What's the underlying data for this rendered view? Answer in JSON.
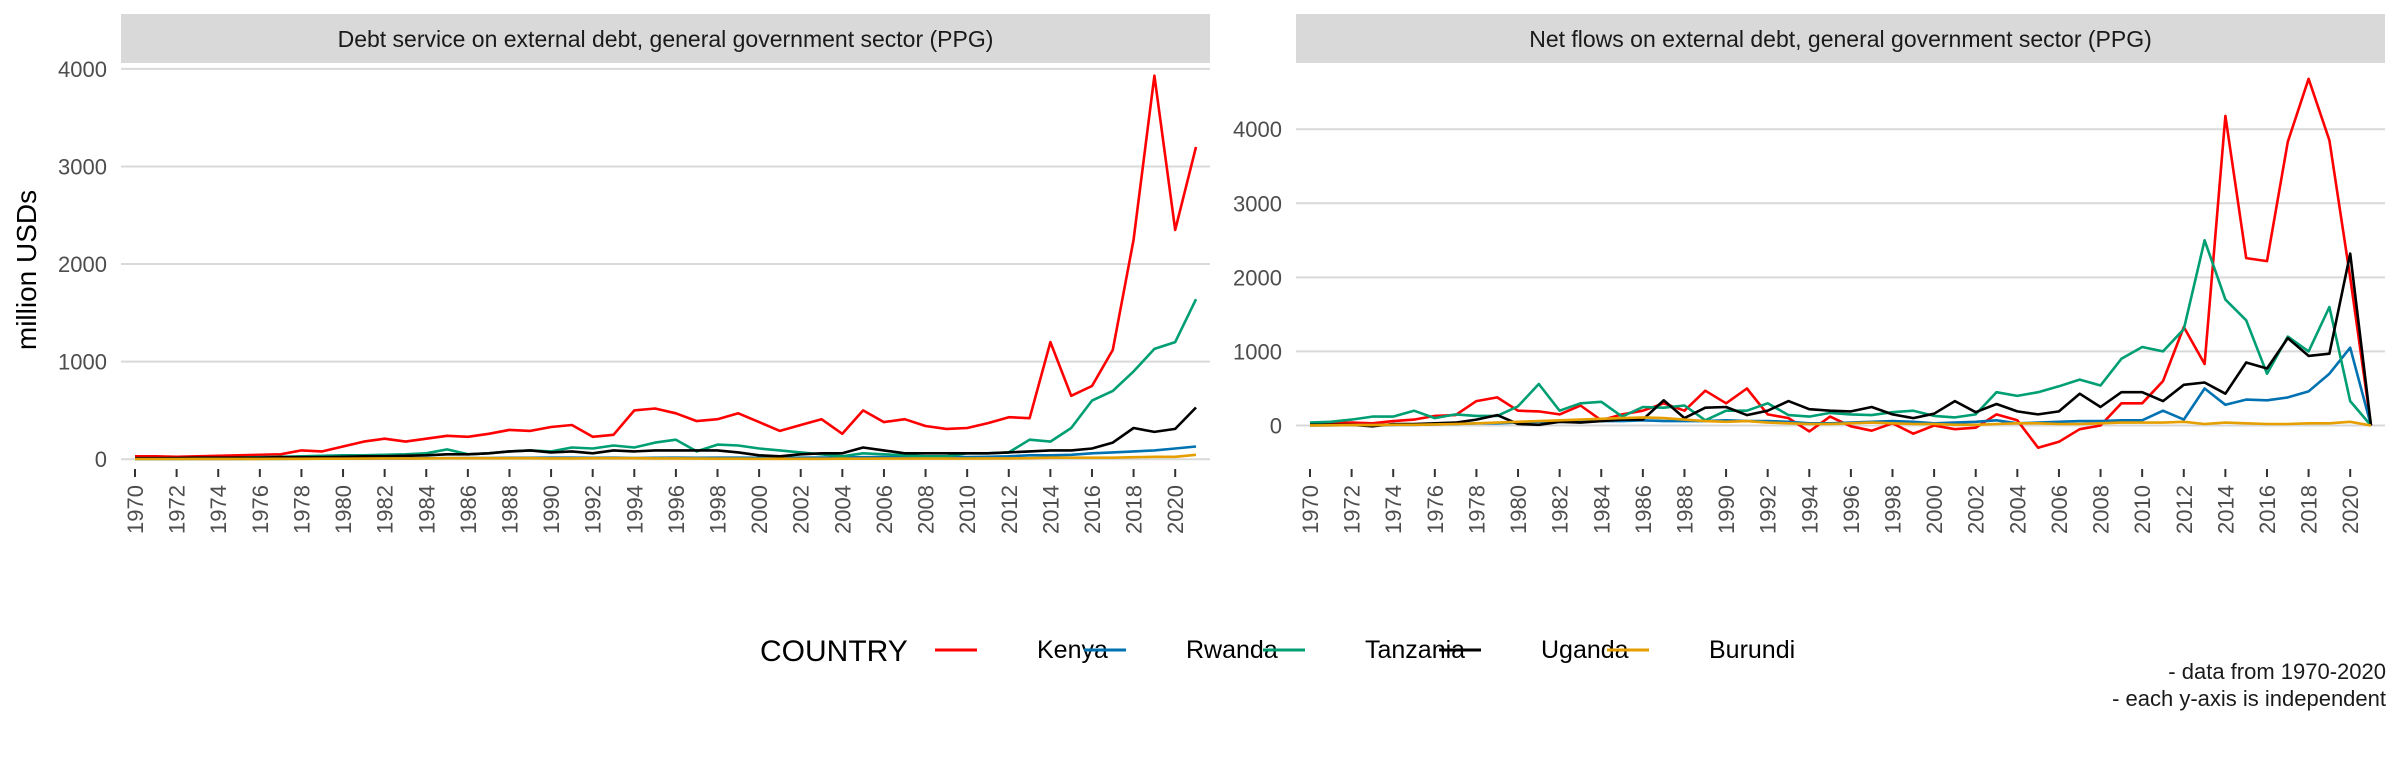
{
  "figure": {
    "ylabel": "million USDs",
    "legend_title": "COUNTRY",
    "legend_position": "bottom",
    "caption_lines": [
      "- data from 1970-2020",
      "- each y-axis is independent"
    ],
    "colors": {
      "Kenya": "#ff0000",
      "Rwanda": "#0072b2",
      "Tanzania": "#009e73",
      "Uganda": "#000000",
      "Burundi": "#e69f00"
    }
  },
  "chart_data": [
    {
      "type": "line",
      "title": "Debt service on external debt, general government sector (PPG)",
      "xlabel": "",
      "ylabel": "million USDs",
      "grid": true,
      "xlim": [
        1970,
        2021
      ],
      "ylim": [
        -80,
        4050
      ],
      "x_ticks": [
        "1970",
        "1972",
        "1974",
        "1976",
        "1978",
        "1980",
        "1982",
        "1984",
        "1986",
        "1988",
        "1990",
        "1992",
        "1994",
        "1996",
        "1998",
        "2000",
        "2002",
        "2004",
        "2006",
        "2008",
        "2010",
        "2012",
        "2014",
        "2016",
        "2018",
        "2020"
      ],
      "y_ticks": [
        "0",
        "1000",
        "2000",
        "3000",
        "4000"
      ],
      "x": [
        1970,
        1971,
        1972,
        1973,
        1974,
        1975,
        1976,
        1977,
        1978,
        1979,
        1980,
        1981,
        1982,
        1983,
        1984,
        1985,
        1986,
        1987,
        1988,
        1989,
        1990,
        1991,
        1992,
        1993,
        1994,
        1995,
        1996,
        1997,
        1998,
        1999,
        2000,
        2001,
        2002,
        2003,
        2004,
        2005,
        2006,
        2007,
        2008,
        2009,
        2010,
        2011,
        2012,
        2013,
        2014,
        2015,
        2016,
        2017,
        2018,
        2019,
        2020,
        2021
      ],
      "series": [
        {
          "name": "Kenya",
          "values": [
            30,
            30,
            25,
            30,
            35,
            40,
            45,
            50,
            90,
            80,
            130,
            180,
            210,
            180,
            210,
            240,
            230,
            260,
            300,
            290,
            330,
            350,
            230,
            250,
            500,
            520,
            470,
            390,
            410,
            470,
            380,
            290,
            350,
            410,
            260,
            500,
            380,
            410,
            340,
            310,
            320,
            370,
            430,
            420,
            1200,
            650,
            750,
            1120,
            2250,
            3930,
            2350,
            3200
          ]
        },
        {
          "name": "Rwanda",
          "values": [
            2,
            2,
            3,
            3,
            3,
            3,
            4,
            4,
            5,
            5,
            6,
            6,
            8,
            8,
            10,
            10,
            12,
            12,
            14,
            14,
            15,
            15,
            14,
            15,
            12,
            14,
            15,
            14,
            15,
            15,
            14,
            13,
            15,
            16,
            18,
            20,
            22,
            22,
            20,
            20,
            22,
            25,
            30,
            40,
            40,
            45,
            60,
            70,
            80,
            90,
            110,
            130
          ]
        },
        {
          "name": "Tanzania",
          "values": [
            5,
            5,
            8,
            10,
            12,
            15,
            20,
            25,
            30,
            35,
            40,
            40,
            45,
            50,
            60,
            100,
            50,
            60,
            80,
            90,
            80,
            120,
            110,
            140,
            120,
            170,
            200,
            80,
            150,
            140,
            110,
            90,
            70,
            50,
            30,
            60,
            50,
            40,
            30,
            30,
            60,
            60,
            70,
            200,
            180,
            320,
            600,
            700,
            900,
            1130,
            1200,
            1640
          ]
        },
        {
          "name": "Uganda",
          "values": [
            10,
            10,
            12,
            15,
            15,
            15,
            15,
            20,
            20,
            20,
            25,
            30,
            30,
            35,
            40,
            50,
            50,
            60,
            80,
            90,
            70,
            80,
            60,
            90,
            80,
            90,
            90,
            90,
            90,
            70,
            40,
            30,
            50,
            60,
            60,
            120,
            90,
            60,
            60,
            60,
            60,
            60,
            70,
            80,
            90,
            90,
            110,
            170,
            320,
            280,
            310,
            530
          ]
        },
        {
          "name": "Burundi",
          "values": [
            2,
            2,
            2,
            3,
            3,
            3,
            3,
            4,
            4,
            5,
            5,
            6,
            8,
            8,
            8,
            10,
            10,
            10,
            10,
            10,
            8,
            8,
            10,
            10,
            10,
            8,
            8,
            6,
            5,
            5,
            4,
            4,
            4,
            4,
            5,
            5,
            6,
            6,
            6,
            6,
            6,
            8,
            8,
            10,
            15,
            15,
            15,
            15,
            20,
            25,
            25,
            45
          ]
        }
      ]
    },
    {
      "type": "line",
      "title": "Net flows on external debt, general government sector (PPG)",
      "xlabel": "",
      "ylabel": "million USDs",
      "grid": true,
      "xlim": [
        1970,
        2021
      ],
      "ylim": [
        -560,
        4880
      ],
      "x_ticks": [
        "1970",
        "1972",
        "1974",
        "1976",
        "1978",
        "1980",
        "1982",
        "1984",
        "1986",
        "1988",
        "1990",
        "1992",
        "1994",
        "1996",
        "1998",
        "2000",
        "2002",
        "2004",
        "2006",
        "2008",
        "2010",
        "2012",
        "2014",
        "2016",
        "2018",
        "2020"
      ],
      "y_ticks": [
        "0",
        "1000",
        "2000",
        "3000",
        "4000"
      ],
      "x": [
        1970,
        1971,
        1972,
        1973,
        1974,
        1975,
        1976,
        1977,
        1978,
        1979,
        1980,
        1981,
        1982,
        1983,
        1984,
        1985,
        1986,
        1987,
        1988,
        1989,
        1990,
        1991,
        1992,
        1993,
        1994,
        1995,
        1996,
        1997,
        1998,
        1999,
        2000,
        2001,
        2002,
        2003,
        2004,
        2005,
        2006,
        2007,
        2008,
        2009,
        2010,
        2011,
        2012,
        2013,
        2014,
        2015,
        2016,
        2017,
        2018,
        2019,
        2020,
        2021
      ],
      "series": [
        {
          "name": "Kenya",
          "values": [
            20,
            30,
            40,
            30,
            60,
            80,
            130,
            140,
            330,
            380,
            200,
            190,
            150,
            270,
            70,
            150,
            200,
            300,
            200,
            470,
            300,
            500,
            150,
            100,
            -80,
            120,
            -10,
            -70,
            30,
            -110,
            0,
            -50,
            -30,
            150,
            70,
            -300,
            -220,
            -50,
            0,
            300,
            300,
            600,
            1330,
            830,
            4180,
            2260,
            2220,
            3830,
            4680,
            3850,
            2000,
            0
          ]
        },
        {
          "name": "Rwanda",
          "values": [
            2,
            3,
            5,
            5,
            8,
            10,
            15,
            20,
            30,
            30,
            40,
            50,
            50,
            50,
            60,
            60,
            70,
            60,
            60,
            60,
            70,
            60,
            60,
            50,
            30,
            30,
            40,
            50,
            60,
            50,
            30,
            40,
            50,
            70,
            30,
            40,
            50,
            60,
            60,
            70,
            70,
            200,
            80,
            500,
            280,
            350,
            340,
            380,
            460,
            700,
            1050,
            0
          ]
        },
        {
          "name": "Tanzania",
          "values": [
            40,
            50,
            80,
            120,
            120,
            200,
            100,
            150,
            130,
            130,
            260,
            560,
            200,
            300,
            320,
            120,
            250,
            240,
            270,
            70,
            200,
            200,
            300,
            140,
            120,
            170,
            150,
            140,
            180,
            200,
            130,
            110,
            150,
            450,
            400,
            450,
            530,
            620,
            540,
            900,
            1060,
            1000,
            1300,
            2500,
            1700,
            1420,
            700,
            1200,
            1000,
            1600,
            330,
            0
          ]
        },
        {
          "name": "Uganda",
          "values": [
            10,
            10,
            10,
            -10,
            20,
            20,
            30,
            40,
            80,
            140,
            20,
            10,
            50,
            40,
            60,
            80,
            80,
            340,
            100,
            240,
            250,
            140,
            200,
            330,
            220,
            200,
            190,
            250,
            150,
            100,
            160,
            330,
            180,
            290,
            190,
            150,
            190,
            430,
            250,
            450,
            450,
            330,
            550,
            580,
            430,
            850,
            770,
            1180,
            940,
            970,
            2320,
            0
          ]
        },
        {
          "name": "Burundi",
          "values": [
            2,
            3,
            5,
            5,
            10,
            10,
            15,
            20,
            30,
            40,
            50,
            60,
            70,
            80,
            90,
            100,
            110,
            100,
            80,
            60,
            50,
            60,
            40,
            30,
            20,
            20,
            30,
            40,
            30,
            20,
            20,
            10,
            10,
            20,
            30,
            30,
            20,
            20,
            30,
            40,
            40,
            40,
            50,
            20,
            40,
            30,
            20,
            20,
            30,
            30,
            50,
            0
          ]
        }
      ]
    }
  ]
}
